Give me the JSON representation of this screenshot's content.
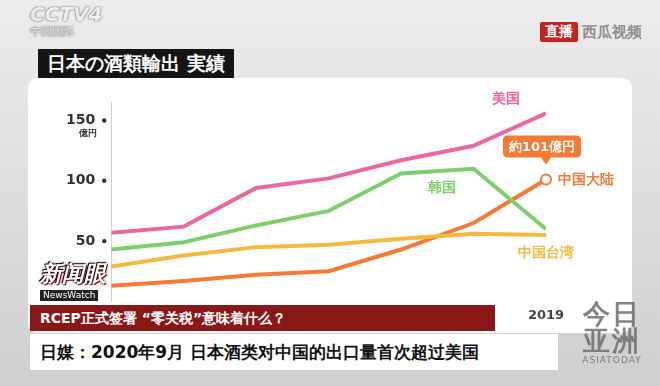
{
  "chart_data": {
    "type": "line",
    "title": "日本の酒類輸出 実績",
    "y_label": "億円",
    "categories": [
      null,
      null,
      null,
      null,
      null,
      null,
      "2019"
    ],
    "series": [
      {
        "name": "美国",
        "color": "#e8689f",
        "values": [
          57,
          62,
          94,
          102,
          117,
          129,
          156
        ]
      },
      {
        "name": "韩国",
        "color": "#7fce6e",
        "values": [
          43,
          49,
          63,
          75,
          106,
          110,
          60
        ]
      },
      {
        "name": "中国台湾",
        "color": "#f6b940",
        "values": [
          29,
          38,
          45,
          47,
          52,
          56,
          55
        ]
      },
      {
        "name": "中国大陆",
        "color": "#f47a35",
        "values": [
          13,
          17,
          22,
          25,
          43,
          65,
          101
        ]
      }
    ],
    "ylim": [
      0,
      165
    ],
    "yticks": [
      50,
      100,
      150
    ],
    "grid": false,
    "annotations": [
      {
        "text": "約101億円",
        "series": "中国大陆",
        "y": 101
      }
    ]
  },
  "overlay": {
    "channel": "CCTV4",
    "channel_sub": "中国国际",
    "live": "直播",
    "watermark": "西瓜视频",
    "program": "新闻眼",
    "program_en": "NewsWatch",
    "banner": "RCEP正式签署 “零关税”意味着什么？",
    "caption": "日媒：2020年9月 日本酒类对中国的出口量首次超过美国",
    "corner_logo": "今日亚洲",
    "corner_logo_en": "ASIATODAY"
  }
}
